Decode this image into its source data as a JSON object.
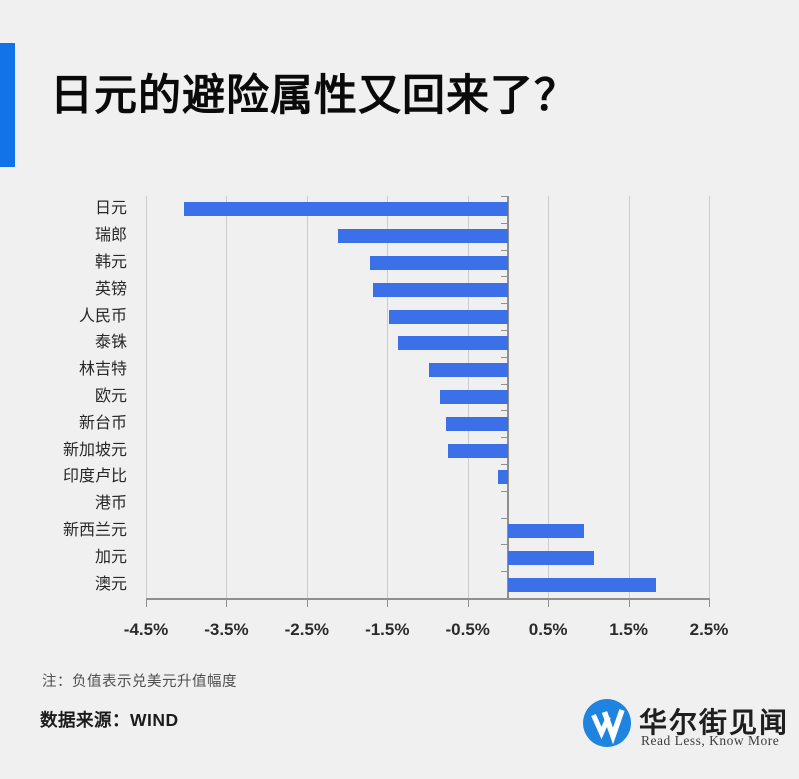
{
  "header": {
    "title": "日元的避险属性又回来了？"
  },
  "chart_data": {
    "type": "bar",
    "orientation": "horizontal",
    "title": "日元的避险属性又回来了？",
    "categories": [
      "日元",
      "瑞郎",
      "韩元",
      "英镑",
      "人民币",
      "泰铢",
      "林吉特",
      "欧元",
      "新台币",
      "新加坡元",
      "印度卢比",
      "港币",
      "新西兰元",
      "加元",
      "澳元"
    ],
    "values": [
      -4.03,
      -2.11,
      -1.72,
      -1.68,
      -1.48,
      -1.37,
      -0.98,
      -0.84,
      -0.77,
      -0.75,
      -0.12,
      0,
      0.94,
      1.07,
      1.84
    ],
    "value_unit": "%",
    "xlim": [
      -4.5,
      2.5
    ],
    "x_ticks": [
      {
        "value": -4.5,
        "label": "-4.5%"
      },
      {
        "value": -3.5,
        "label": "-3.5%"
      },
      {
        "value": -2.5,
        "label": "-2.5%"
      },
      {
        "value": -1.5,
        "label": "-1.5%"
      },
      {
        "value": -0.5,
        "label": "-0.5%"
      },
      {
        "value": 0.5,
        "label": "0.5%"
      },
      {
        "value": 1.5,
        "label": "1.5%"
      },
      {
        "value": 2.5,
        "label": "2.5%"
      }
    ],
    "grid": "vertical-at-ticks",
    "zero_line": true,
    "legend": "none",
    "bar_color": "#3b70e8"
  },
  "footer": {
    "note": "注：负值表示兑美元升值幅度",
    "source": "数据来源：WIND"
  },
  "brand": {
    "name": "华尔街见闻",
    "tagline": "Read Less, Know More",
    "logo_letter": "W",
    "logo_color": "#1e84e0"
  },
  "colors": {
    "background": "#f0f0f1",
    "accent": "#1173e8",
    "bar": "#3b70e8",
    "axis": "#8f8f8f",
    "grid": "#cbcbcb"
  }
}
